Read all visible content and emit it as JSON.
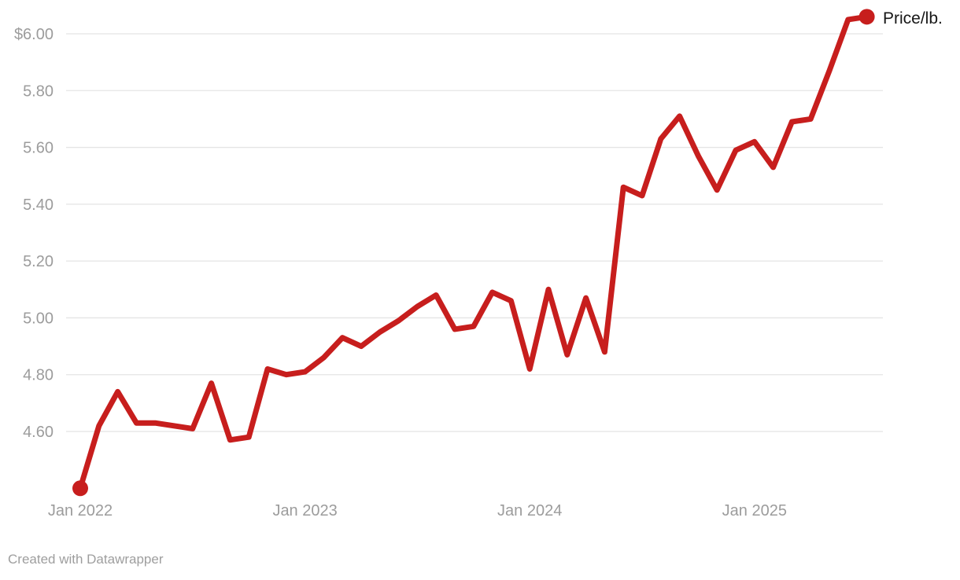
{
  "chart_data": {
    "type": "line",
    "title": "",
    "series": [
      {
        "name": "Price/lb.",
        "values": [
          4.4,
          4.62,
          4.74,
          4.63,
          4.63,
          4.62,
          4.61,
          4.77,
          4.57,
          4.58,
          4.82,
          4.8,
          4.81,
          4.86,
          4.93,
          4.9,
          4.95,
          4.99,
          5.04,
          5.08,
          4.96,
          4.97,
          5.09,
          5.06,
          4.82,
          5.1,
          4.87,
          5.07,
          4.88,
          5.46,
          5.43,
          5.63,
          5.71,
          5.57,
          5.45,
          5.59,
          5.62,
          5.53,
          5.69,
          5.7,
          5.87,
          6.05,
          6.06
        ]
      }
    ],
    "x_labels": [
      "Jan 2022",
      "Feb 2022",
      "Mar 2022",
      "Apr 2022",
      "May 2022",
      "Jun 2022",
      "Jul 2022",
      "Aug 2022",
      "Sep 2022",
      "Oct 2022",
      "Nov 2022",
      "Dec 2022",
      "Jan 2023",
      "Feb 2023",
      "Mar 2023",
      "Apr 2023",
      "May 2023",
      "Jun 2023",
      "Jul 2023",
      "Aug 2023",
      "Sep 2023",
      "Oct 2023",
      "Nov 2023",
      "Dec 2023",
      "Jan 2024",
      "Feb 2024",
      "Mar 2024",
      "Apr 2024",
      "May 2024",
      "Jun 2024",
      "Jul 2024",
      "Aug 2024",
      "Sep 2024",
      "Oct 2024",
      "Nov 2024",
      "Dec 2024",
      "Jan 2025",
      "Feb 2025",
      "Mar 2025",
      "Apr 2025",
      "May 2025",
      "Jun 2025",
      "Jul 2025"
    ],
    "x_axis": {
      "ticks": [
        {
          "index": 0,
          "label": "Jan 2022"
        },
        {
          "index": 12,
          "label": "Jan 2023"
        },
        {
          "index": 24,
          "label": "Jan 2024"
        },
        {
          "index": 36,
          "label": "Jan 2025"
        }
      ]
    },
    "y_axis": {
      "ticks": [
        {
          "value": 6.0,
          "label": "$6.00"
        },
        {
          "value": 5.8,
          "label": "5.80"
        },
        {
          "value": 5.6,
          "label": "5.60"
        },
        {
          "value": 5.4,
          "label": "5.40"
        },
        {
          "value": 5.2,
          "label": "5.20"
        },
        {
          "value": 5.0,
          "label": "5.00"
        },
        {
          "value": 4.8,
          "label": "4.80"
        },
        {
          "value": 4.6,
          "label": "4.60"
        }
      ],
      "range_shown": [
        4.33,
        6.09
      ]
    },
    "grid": "horizontal",
    "legend_position": "top-right",
    "markers": "first-and-last-point"
  },
  "footer": {
    "text": "Created with Datawrapper"
  },
  "colors": {
    "line": "#c71e1d",
    "grid": "#e4e4e4",
    "axis_text": "#9c9c9c",
    "legend_text": "#171717",
    "footer_text": "#9e9e9e",
    "background": "#ffffff"
  }
}
